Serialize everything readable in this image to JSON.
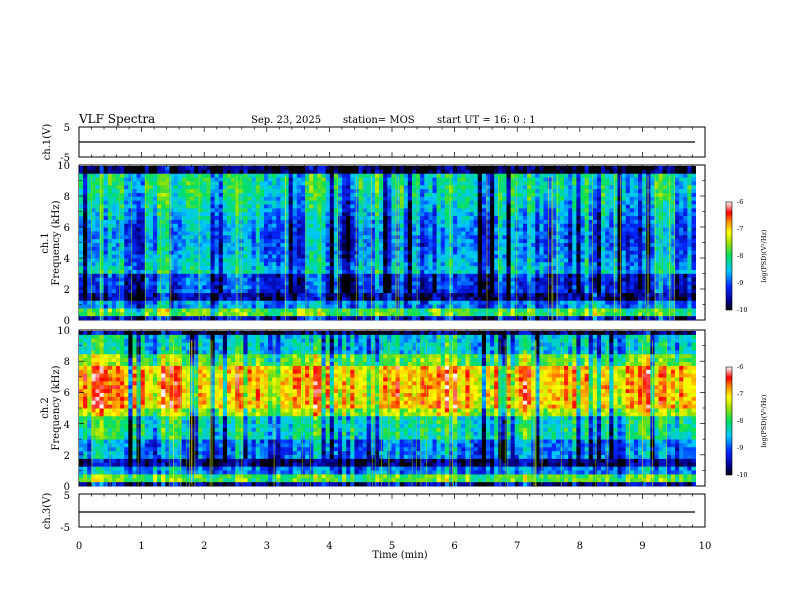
{
  "header": {
    "title": "VLF Spectra",
    "date": "Sep. 23, 2025",
    "station": "station= MOS",
    "start_time": "start UT =  16: 0  : 1"
  },
  "colors": {
    "background": "#ffffff",
    "spectrogram_floor": "#000000",
    "trace": "#000000"
  },
  "chart_data": [
    {
      "type": "line",
      "id": "ch1-waveform",
      "ylabel": "ch.1(V)",
      "ylim": [
        -5,
        5
      ],
      "y_tick_labels": [
        "5",
        "-5"
      ],
      "x": [
        0,
        9.85
      ],
      "series": [
        {
          "values": [
            -0.8,
            -0.8
          ]
        }
      ]
    },
    {
      "type": "heatmap",
      "id": "ch1-spectrogram",
      "ylabel_line1": "ch.1",
      "ylabel_line2": "Frequency (kHz)",
      "ylim": [
        0,
        10
      ],
      "y_tick_labels": [
        "0",
        "2",
        "4",
        "6",
        "8",
        "10"
      ],
      "xlim": [
        0,
        10
      ],
      "colorbar": {
        "label": "log(PSD)(V²/Hz)",
        "range": [
          -10,
          -6
        ],
        "tick_labels": [
          "-6",
          "-7",
          "-8",
          "-9",
          "-10"
        ]
      }
    },
    {
      "type": "heatmap",
      "id": "ch2-spectrogram",
      "ylabel_line1": "ch.2",
      "ylabel_line2": "Frequency (kHz)",
      "ylim": [
        0,
        10
      ],
      "y_tick_labels": [
        "0",
        "2",
        "4",
        "6",
        "8",
        "10"
      ],
      "xlim": [
        0,
        10
      ],
      "colorbar": {
        "label": "log(PSD)(V²/Hz)",
        "range": [
          -10,
          -6
        ],
        "tick_labels": [
          "-6",
          "-7",
          "-8",
          "-9",
          "-10"
        ]
      }
    },
    {
      "type": "line",
      "id": "ch3-waveform",
      "ylabel": "ch.3(V)",
      "ylim": [
        -5,
        5
      ],
      "y_tick_labels": [
        "5",
        "-5"
      ],
      "x": [
        0,
        9.85
      ],
      "series": [
        {
          "values": [
            -0.8,
            -0.8
          ]
        }
      ]
    }
  ],
  "x_axis": {
    "label": "Time (min)",
    "tick_labels": [
      "0",
      "1",
      "2",
      "3",
      "4",
      "5",
      "6",
      "7",
      "8",
      "9",
      "10"
    ]
  }
}
